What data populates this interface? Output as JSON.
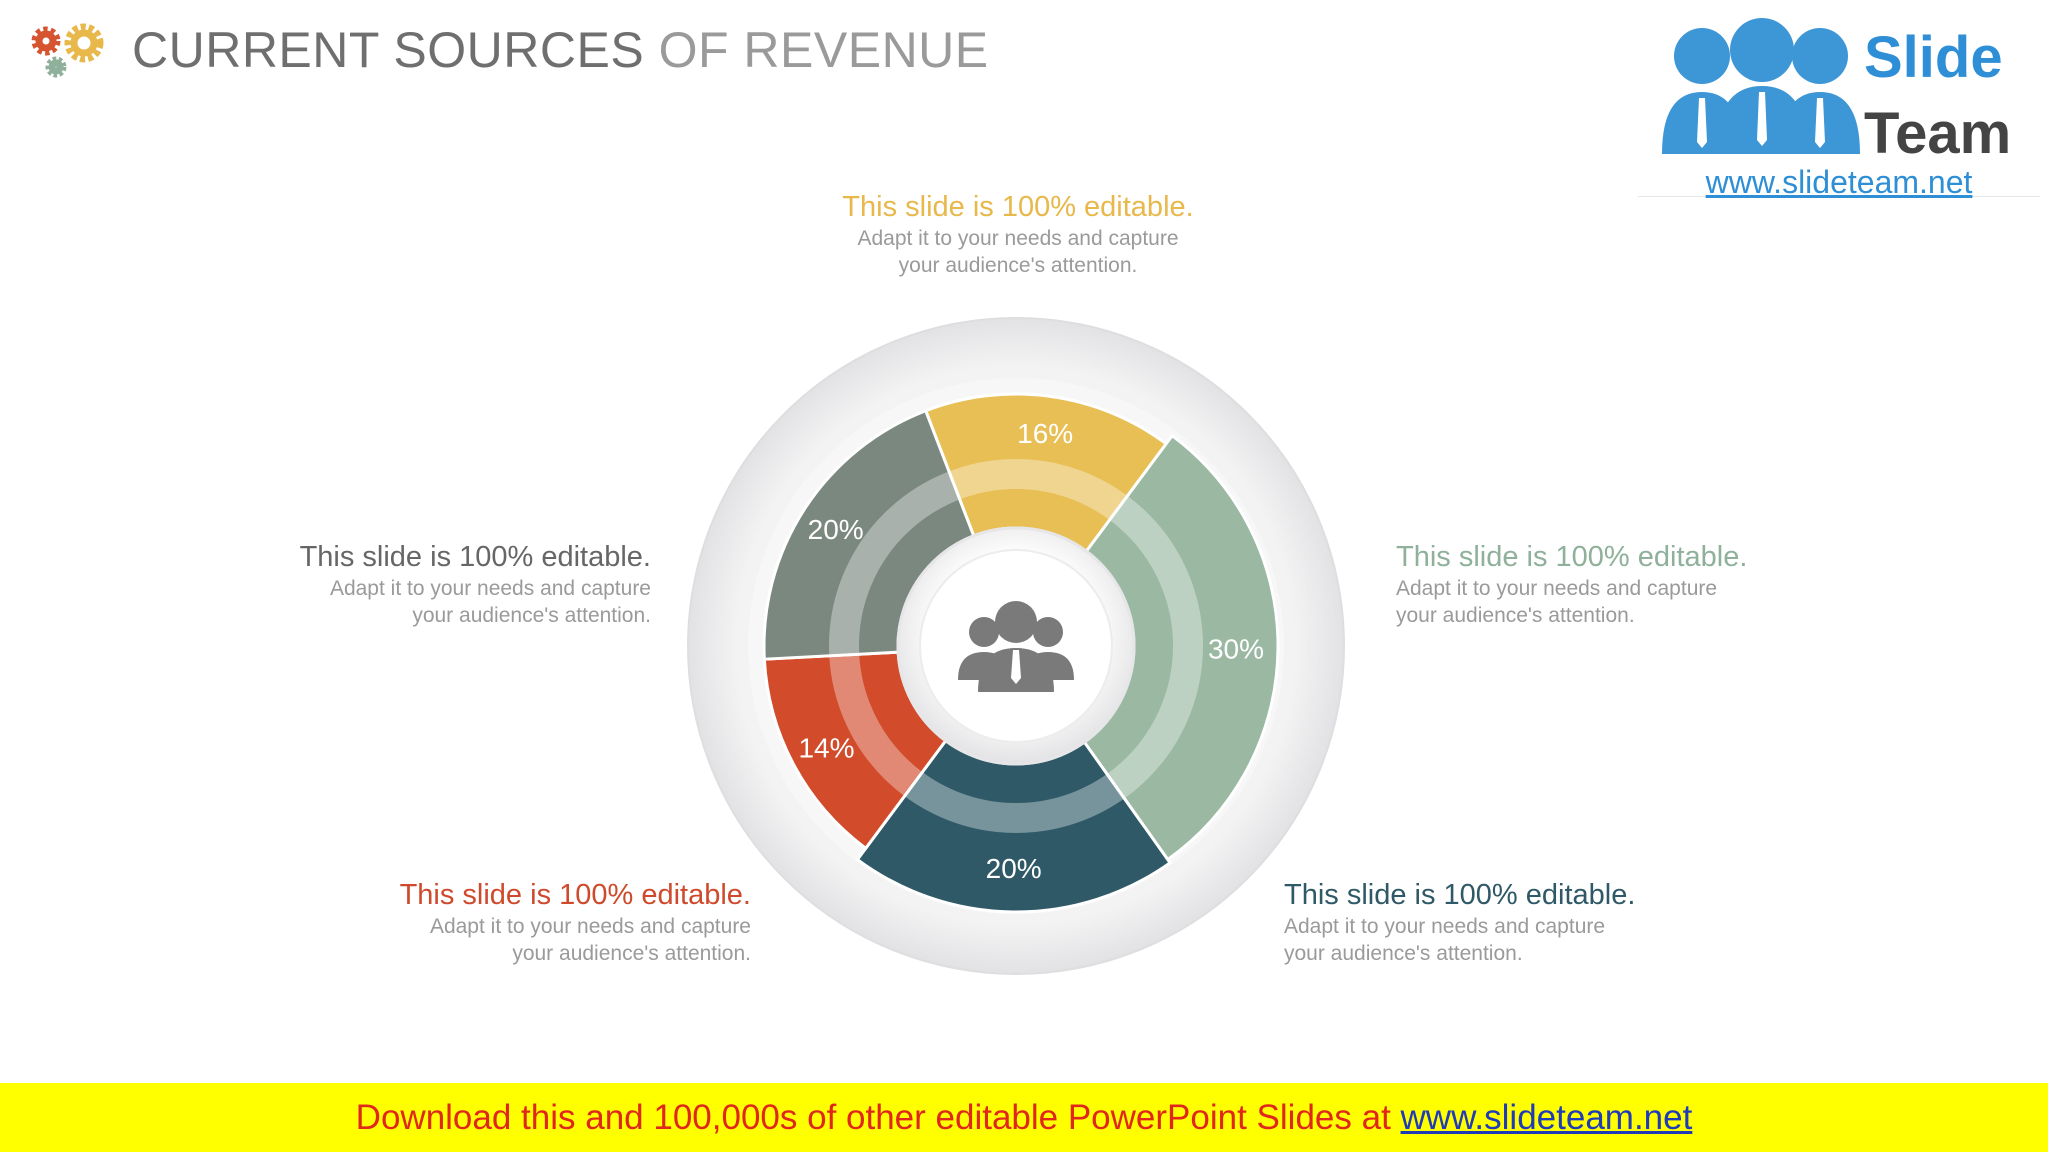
{
  "title": {
    "main": "CURRENT SOURCES",
    "sub": "OF REVENUE"
  },
  "logo": {
    "word1": "Slide",
    "word2": "Team",
    "url": "www.slideteam.net"
  },
  "chart_data": {
    "type": "pie",
    "categories": [
      "Yellow segment",
      "Sage segment",
      "Teal segment",
      "Red segment",
      "Gray segment"
    ],
    "values": [
      16,
      30,
      20,
      14,
      20
    ],
    "labels": [
      "16%",
      "30%",
      "20%",
      "14%",
      "20%"
    ],
    "colors": [
      "#e8bf55",
      "#9ab8a2",
      "#2f5967",
      "#d24b2b",
      "#7b8880"
    ],
    "center_icon": "people-group-icon"
  },
  "callouts": [
    {
      "title": "This slide is 100% editable.",
      "body_line1": "Adapt it to your needs and capture",
      "body_line2": "your audience's attention.",
      "color": "#e8b84a"
    },
    {
      "title": "This slide is 100% editable.",
      "body_line1": "Adapt it to your needs and capture",
      "body_line2": "your audience's attention.",
      "color": "#8fb09a"
    },
    {
      "title": "This slide is 100% editable.",
      "body_line1": "Adapt it to your needs and capture",
      "body_line2": "your audience's attention.",
      "color": "#2f5967"
    },
    {
      "title": "This slide is 100% editable.",
      "body_line1": "Adapt it to your needs and capture",
      "body_line2": "your audience's attention.",
      "color": "#cf4a2c"
    },
    {
      "title": "This slide is 100% editable.",
      "body_line1": "Adapt it to your needs and capture",
      "body_line2": "your audience's attention.",
      "color": "#666666"
    }
  ],
  "banner": {
    "text": "Download this and 100,000s of other editable PowerPoint Slides at",
    "link": "www.slideteam.net"
  }
}
